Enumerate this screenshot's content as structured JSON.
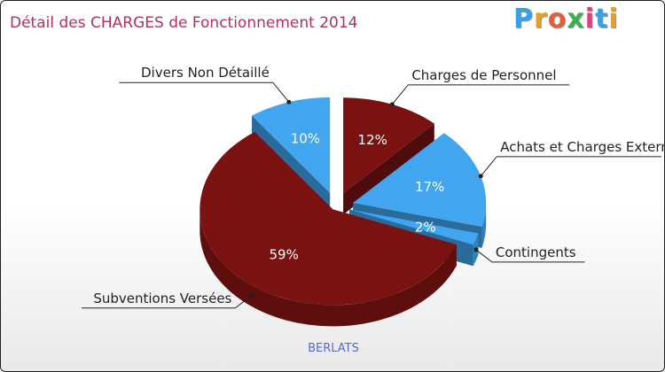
{
  "title": "Détail des CHARGES de Fonctionnement 2014",
  "logo": {
    "letters": [
      "P",
      "r",
      "o",
      "x",
      "i",
      "t",
      "i"
    ],
    "colors": [
      "#3aa0e0",
      "#e8a020",
      "#e06040",
      "#3ab050",
      "#e04080",
      "#3aa0e0",
      "#e8a020"
    ]
  },
  "city": "BERLATS",
  "chart_data": {
    "type": "pie",
    "title": "Détail des CHARGES de Fonctionnement 2014",
    "slices": [
      {
        "label": "Charges de Personnel",
        "value": 12,
        "pct_label": "12%",
        "color": "#7a1212"
      },
      {
        "label": "Achats et Charges Externes",
        "value": 17,
        "pct_label": "17%",
        "color": "#42a5f0"
      },
      {
        "label": "Contingents",
        "value": 2,
        "pct_label": "2%",
        "color": "#42a5f0"
      },
      {
        "label": "Subventions Versées",
        "value": 59,
        "pct_label": "59%",
        "color": "#7a1212"
      },
      {
        "label": "Divers Non Détaillé",
        "value": 10,
        "pct_label": "10%",
        "color": "#42a5f0"
      }
    ]
  }
}
